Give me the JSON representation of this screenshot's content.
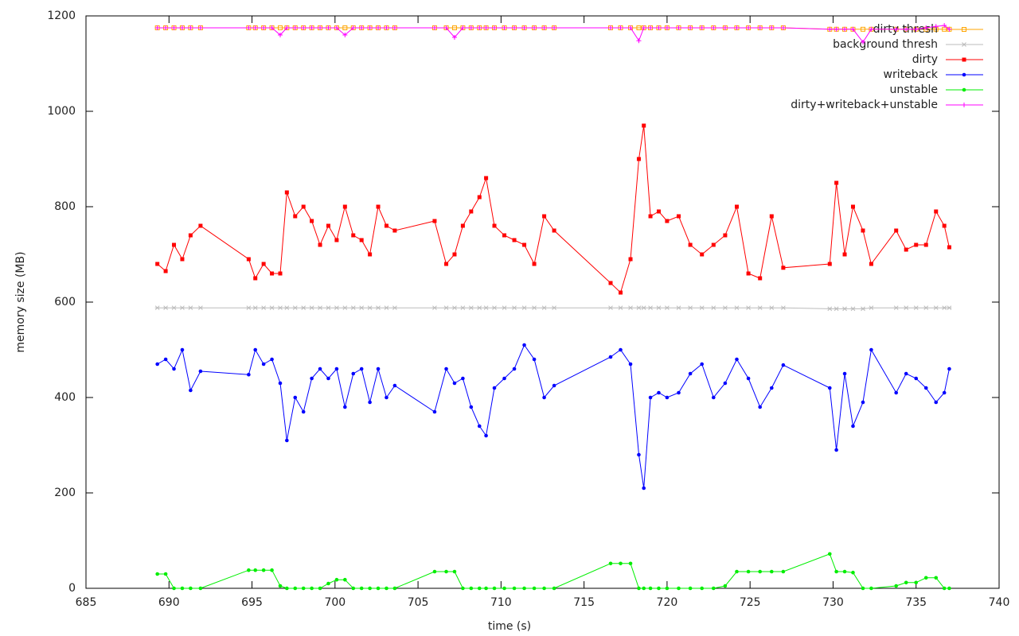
{
  "chart_data": {
    "type": "line",
    "x_label": "time (s)",
    "y_label": "memory size (MB)",
    "xlim": [
      685,
      740
    ],
    "xticks": [
      685,
      690,
      695,
      700,
      705,
      710,
      715,
      720,
      725,
      730,
      735,
      740
    ],
    "ylim": [
      0,
      1200
    ],
    "yticks": [
      0,
      200,
      400,
      600,
      800,
      1000,
      1200
    ],
    "legend": "top-right",
    "x": [
      689.3,
      689.8,
      690.3,
      690.8,
      691.3,
      691.9,
      694.8,
      695.2,
      695.7,
      696.2,
      696.7,
      697.1,
      697.6,
      698.1,
      698.6,
      699.1,
      699.6,
      700.1,
      700.6,
      701.1,
      701.6,
      702.1,
      702.6,
      703.1,
      703.6,
      706.0,
      706.7,
      707.2,
      707.7,
      708.2,
      708.7,
      709.1,
      709.6,
      710.2,
      710.8,
      711.4,
      712.0,
      712.6,
      713.2,
      716.6,
      717.2,
      717.8,
      718.3,
      718.6,
      719.0,
      719.5,
      720.0,
      720.7,
      721.4,
      722.1,
      722.8,
      723.5,
      724.2,
      724.9,
      725.6,
      726.3,
      727.0,
      729.8,
      730.2,
      730.7,
      731.2,
      731.8,
      732.3,
      733.8,
      734.4,
      735.0,
      735.6,
      736.2,
      736.7,
      737.0
    ],
    "series": [
      {
        "name": "dirty thresh",
        "color": "#ffa500",
        "marker": "open-square",
        "values": [
          1175,
          1175,
          1175,
          1175,
          1175,
          1175,
          1175,
          1175,
          1175,
          1175,
          1175,
          1175,
          1175,
          1175,
          1175,
          1175,
          1175,
          1175,
          1175,
          1175,
          1175,
          1175,
          1175,
          1175,
          1175,
          1175,
          1175,
          1175,
          1175,
          1175,
          1175,
          1175,
          1175,
          1175,
          1175,
          1175,
          1175,
          1175,
          1175,
          1175,
          1175,
          1175,
          1175,
          1175,
          1175,
          1175,
          1175,
          1175,
          1175,
          1175,
          1175,
          1175,
          1175,
          1175,
          1175,
          1175,
          1175,
          1172,
          1172,
          1172,
          1172,
          1172,
          1172,
          1172,
          1172,
          1172,
          1172,
          1172,
          1172,
          1172
        ]
      },
      {
        "name": "background thresh",
        "color": "#bbbbbb",
        "marker": "star",
        "values": [
          588,
          588,
          588,
          588,
          588,
          588,
          588,
          588,
          588,
          588,
          588,
          588,
          588,
          588,
          588,
          588,
          588,
          588,
          588,
          588,
          588,
          588,
          588,
          588,
          588,
          588,
          588,
          588,
          588,
          588,
          588,
          588,
          588,
          588,
          588,
          588,
          588,
          588,
          588,
          588,
          588,
          588,
          588,
          588,
          588,
          588,
          588,
          588,
          588,
          588,
          588,
          588,
          588,
          588,
          588,
          588,
          588,
          586,
          586,
          586,
          586,
          586,
          588,
          588,
          588,
          588,
          588,
          588,
          588,
          588
        ]
      },
      {
        "name": "dirty",
        "color": "#ff0000",
        "marker": "square",
        "values": [
          680,
          665,
          720,
          690,
          740,
          760,
          690,
          650,
          680,
          660,
          660,
          830,
          780,
          800,
          770,
          720,
          760,
          730,
          800,
          740,
          730,
          700,
          800,
          760,
          750,
          770,
          680,
          700,
          760,
          790,
          820,
          860,
          760,
          740,
          730,
          720,
          680,
          780,
          750,
          640,
          620,
          690,
          900,
          970,
          780,
          790,
          770,
          780,
          720,
          700,
          720,
          740,
          800,
          660,
          650,
          780,
          672,
          680,
          850,
          700,
          800,
          750,
          680,
          750,
          710,
          720,
          720,
          790,
          760,
          715
        ]
      },
      {
        "name": "writeback",
        "color": "#0000ff",
        "marker": "circle",
        "values": [
          470,
          480,
          460,
          500,
          415,
          455,
          448,
          500,
          470,
          480,
          430,
          310,
          400,
          370,
          440,
          460,
          440,
          460,
          380,
          450,
          460,
          390,
          460,
          400,
          425,
          370,
          460,
          430,
          440,
          380,
          340,
          320,
          420,
          440,
          460,
          510,
          480,
          400,
          425,
          485,
          500,
          470,
          280,
          210,
          400,
          410,
          400,
          410,
          450,
          470,
          400,
          430,
          480,
          440,
          380,
          420,
          468,
          420,
          290,
          450,
          340,
          390,
          500,
          410,
          450,
          440,
          420,
          390,
          410,
          460
        ]
      },
      {
        "name": "unstable",
        "color": "#00ee00",
        "marker": "circle",
        "values": [
          30,
          30,
          0,
          0,
          0,
          0,
          38,
          38,
          38,
          38,
          5,
          0,
          0,
          0,
          0,
          0,
          10,
          18,
          18,
          0,
          0,
          0,
          0,
          0,
          0,
          35,
          35,
          35,
          0,
          0,
          0,
          0,
          0,
          0,
          0,
          0,
          0,
          0,
          0,
          52,
          52,
          52,
          0,
          0,
          0,
          0,
          0,
          0,
          0,
          0,
          0,
          5,
          35,
          35,
          35,
          35,
          35,
          72,
          35,
          35,
          33,
          0,
          0,
          5,
          12,
          12,
          22,
          22,
          0,
          0
        ]
      },
      {
        "name": "dirty+writeback+unstable",
        "color": "#ff00ff",
        "marker": "plus",
        "values": [
          1175,
          1175,
          1175,
          1175,
          1175,
          1175,
          1175,
          1175,
          1175,
          1175,
          1160,
          1175,
          1175,
          1175,
          1175,
          1175,
          1175,
          1175,
          1160,
          1175,
          1175,
          1175,
          1175,
          1175,
          1175,
          1175,
          1175,
          1155,
          1175,
          1175,
          1175,
          1175,
          1175,
          1175,
          1175,
          1175,
          1175,
          1175,
          1175,
          1175,
          1175,
          1175,
          1148,
          1175,
          1175,
          1175,
          1175,
          1175,
          1175,
          1175,
          1175,
          1175,
          1175,
          1175,
          1175,
          1175,
          1175,
          1172,
          1172,
          1172,
          1172,
          1145,
          1172,
          1172,
          1172,
          1172,
          1175,
          1178,
          1180,
          1172
        ]
      }
    ]
  }
}
